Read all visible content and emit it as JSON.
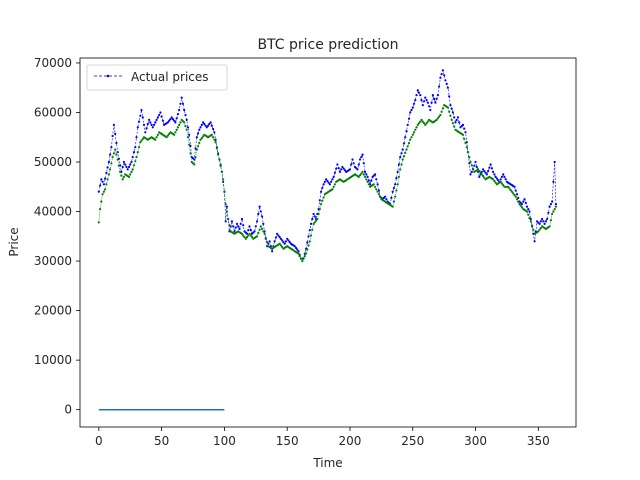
{
  "chart_data": {
    "type": "line",
    "title": "BTC price prediction",
    "xlabel": "Time",
    "ylabel": "Price",
    "xlim": [
      -15,
      380
    ],
    "ylim": [
      -3500,
      71000
    ],
    "xticks": [
      0,
      50,
      100,
      150,
      200,
      250,
      300,
      350
    ],
    "yticks": [
      0,
      10000,
      20000,
      30000,
      40000,
      50000,
      60000,
      70000
    ],
    "grid": false,
    "legend": {
      "position": "top-left",
      "entries": [
        "Actual prices"
      ]
    },
    "series": [
      {
        "name": "Actual prices",
        "color": "#0000ff",
        "style": "dashed-dots",
        "keypoints": [
          [
            0,
            44000
          ],
          [
            2,
            46500
          ],
          [
            4,
            45500
          ],
          [
            6,
            47800
          ],
          [
            8,
            50000
          ],
          [
            10,
            53000
          ],
          [
            12,
            57500
          ],
          [
            15,
            52000
          ],
          [
            18,
            48000
          ],
          [
            20,
            50000
          ],
          [
            23,
            48500
          ],
          [
            26,
            50000
          ],
          [
            29,
            53000
          ],
          [
            31,
            57000
          ],
          [
            34,
            60500
          ],
          [
            37,
            56000
          ],
          [
            40,
            58500
          ],
          [
            43,
            57000
          ],
          [
            46,
            58500
          ],
          [
            49,
            60000
          ],
          [
            52,
            57500
          ],
          [
            55,
            58000
          ],
          [
            58,
            59000
          ],
          [
            61,
            58000
          ],
          [
            64,
            60500
          ],
          [
            66,
            63000
          ],
          [
            68,
            60500
          ],
          [
            70,
            58500
          ],
          [
            72,
            55500
          ],
          [
            74,
            51000
          ],
          [
            76,
            50500
          ],
          [
            78,
            55000
          ],
          [
            80,
            56500
          ],
          [
            83,
            58000
          ],
          [
            86,
            57000
          ],
          [
            89,
            58000
          ],
          [
            92,
            56000
          ],
          [
            94,
            53000
          ],
          [
            96,
            50500
          ],
          [
            98,
            48000
          ],
          [
            100,
            44000
          ],
          [
            101,
            38000
          ],
          [
            102,
            41000
          ],
          [
            104,
            36000
          ],
          [
            106,
            38000
          ],
          [
            108,
            36000
          ],
          [
            110,
            37500
          ],
          [
            112,
            36500
          ],
          [
            114,
            38500
          ],
          [
            116,
            36000
          ],
          [
            118,
            35500
          ],
          [
            120,
            37000
          ],
          [
            122,
            35500
          ],
          [
            124,
            36000
          ],
          [
            126,
            38000
          ],
          [
            128,
            41000
          ],
          [
            130,
            39000
          ],
          [
            132,
            36000
          ],
          [
            134,
            33000
          ],
          [
            136,
            34000
          ],
          [
            138,
            32000
          ],
          [
            140,
            34000
          ],
          [
            142,
            35500
          ],
          [
            145,
            34500
          ],
          [
            148,
            33500
          ],
          [
            150,
            34500
          ],
          [
            153,
            33500
          ],
          [
            156,
            33000
          ],
          [
            159,
            32000
          ],
          [
            161,
            30500
          ],
          [
            163,
            30500
          ],
          [
            165,
            32500
          ],
          [
            167,
            35000
          ],
          [
            169,
            37500
          ],
          [
            171,
            39500
          ],
          [
            173,
            38500
          ],
          [
            175,
            40500
          ],
          [
            177,
            44000
          ],
          [
            179,
            45500
          ],
          [
            181,
            46500
          ],
          [
            184,
            45500
          ],
          [
            187,
            47000
          ],
          [
            190,
            49500
          ],
          [
            192,
            48000
          ],
          [
            194,
            49000
          ],
          [
            197,
            48000
          ],
          [
            200,
            48500
          ],
          [
            202,
            50500
          ],
          [
            204,
            49000
          ],
          [
            206,
            48500
          ],
          [
            208,
            50500
          ],
          [
            210,
            51500
          ],
          [
            212,
            48000
          ],
          [
            214,
            47000
          ],
          [
            216,
            45500
          ],
          [
            218,
            47000
          ],
          [
            220,
            47500
          ],
          [
            222,
            45500
          ],
          [
            224,
            43000
          ],
          [
            226,
            42500
          ],
          [
            228,
            43000
          ],
          [
            230,
            42000
          ],
          [
            232,
            41500
          ],
          [
            234,
            44000
          ],
          [
            236,
            45500
          ],
          [
            238,
            48000
          ],
          [
            240,
            51000
          ],
          [
            242,
            52500
          ],
          [
            244,
            55000
          ],
          [
            246,
            57500
          ],
          [
            248,
            60000
          ],
          [
            250,
            61000
          ],
          [
            252,
            62500
          ],
          [
            254,
            64500
          ],
          [
            256,
            63500
          ],
          [
            258,
            61500
          ],
          [
            260,
            63000
          ],
          [
            262,
            62000
          ],
          [
            264,
            60500
          ],
          [
            266,
            63500
          ],
          [
            268,
            62000
          ],
          [
            270,
            63500
          ],
          [
            272,
            67000
          ],
          [
            274,
            68500
          ],
          [
            276,
            66500
          ],
          [
            278,
            65000
          ],
          [
            280,
            61500
          ],
          [
            282,
            60000
          ],
          [
            284,
            58000
          ],
          [
            286,
            59000
          ],
          [
            288,
            57000
          ],
          [
            290,
            57500
          ],
          [
            292,
            56000
          ],
          [
            294,
            52000
          ],
          [
            296,
            47500
          ],
          [
            298,
            48500
          ],
          [
            300,
            50000
          ],
          [
            303,
            47000
          ],
          [
            306,
            48500
          ],
          [
            309,
            47500
          ],
          [
            312,
            49500
          ],
          [
            314,
            48000
          ],
          [
            316,
            47000
          ],
          [
            319,
            46000
          ],
          [
            322,
            47500
          ],
          [
            325,
            46000
          ],
          [
            328,
            45500
          ],
          [
            331,
            45000
          ],
          [
            333,
            43500
          ],
          [
            335,
            42000
          ],
          [
            337,
            41500
          ],
          [
            339,
            42500
          ],
          [
            341,
            41000
          ],
          [
            343,
            40000
          ],
          [
            345,
            37000
          ],
          [
            347,
            34000
          ],
          [
            349,
            38000
          ],
          [
            351,
            37500
          ],
          [
            353,
            38500
          ],
          [
            355,
            37500
          ],
          [
            357,
            38500
          ],
          [
            359,
            41000
          ],
          [
            361,
            42000
          ],
          [
            363,
            50000
          ],
          [
            364,
            41500
          ]
        ]
      },
      {
        "name": "",
        "color": "#008000",
        "style": "dotted-dots",
        "keypoints": [
          [
            0,
            37800
          ],
          [
            1,
            40500
          ],
          [
            3,
            43500
          ],
          [
            5,
            44500
          ],
          [
            7,
            46500
          ],
          [
            9,
            48500
          ],
          [
            11,
            51000
          ],
          [
            13,
            52500
          ],
          [
            15,
            50500
          ],
          [
            17,
            48000
          ],
          [
            19,
            46500
          ],
          [
            21,
            47500
          ],
          [
            24,
            47000
          ],
          [
            27,
            48500
          ],
          [
            30,
            51000
          ],
          [
            33,
            54000
          ],
          [
            36,
            55000
          ],
          [
            39,
            54500
          ],
          [
            42,
            55000
          ],
          [
            45,
            54500
          ],
          [
            48,
            56000
          ],
          [
            51,
            55500
          ],
          [
            54,
            55000
          ],
          [
            57,
            56000
          ],
          [
            60,
            55500
          ],
          [
            63,
            57000
          ],
          [
            66,
            58500
          ],
          [
            68,
            58000
          ],
          [
            70,
            56500
          ],
          [
            72,
            53500
          ],
          [
            74,
            50000
          ],
          [
            76,
            49500
          ],
          [
            78,
            52500
          ],
          [
            81,
            54500
          ],
          [
            84,
            55500
          ],
          [
            87,
            55000
          ],
          [
            90,
            55500
          ],
          [
            93,
            54000
          ],
          [
            95,
            51500
          ],
          [
            97,
            49500
          ],
          [
            99,
            46500
          ],
          [
            101,
            41500
          ],
          [
            103,
            38500
          ],
          [
            105,
            36000
          ],
          [
            108,
            35500
          ],
          [
            111,
            36000
          ],
          [
            114,
            35500
          ],
          [
            117,
            34500
          ],
          [
            120,
            35500
          ],
          [
            123,
            34500
          ],
          [
            126,
            35000
          ],
          [
            129,
            37000
          ],
          [
            132,
            35500
          ],
          [
            135,
            33000
          ],
          [
            138,
            32500
          ],
          [
            141,
            33000
          ],
          [
            144,
            33500
          ],
          [
            147,
            32500
          ],
          [
            150,
            33000
          ],
          [
            153,
            32500
          ],
          [
            156,
            32000
          ],
          [
            159,
            31500
          ],
          [
            162,
            30000
          ],
          [
            165,
            31500
          ],
          [
            168,
            34000
          ],
          [
            171,
            37500
          ],
          [
            174,
            38500
          ],
          [
            177,
            41500
          ],
          [
            180,
            43500
          ],
          [
            183,
            44000
          ],
          [
            186,
            44500
          ],
          [
            189,
            46000
          ],
          [
            192,
            46500
          ],
          [
            195,
            46000
          ],
          [
            198,
            46500
          ],
          [
            201,
            47000
          ],
          [
            204,
            47500
          ],
          [
            207,
            47000
          ],
          [
            210,
            48000
          ],
          [
            213,
            46500
          ],
          [
            216,
            45000
          ],
          [
            219,
            45500
          ],
          [
            222,
            44000
          ],
          [
            225,
            42500
          ],
          [
            228,
            42000
          ],
          [
            231,
            41500
          ],
          [
            234,
            41000
          ],
          [
            236,
            43000
          ],
          [
            238,
            45500
          ],
          [
            240,
            48500
          ],
          [
            242,
            50500
          ],
          [
            245,
            52500
          ],
          [
            248,
            54500
          ],
          [
            251,
            56000
          ],
          [
            254,
            57500
          ],
          [
            257,
            58500
          ],
          [
            260,
            57500
          ],
          [
            263,
            58500
          ],
          [
            266,
            58000
          ],
          [
            269,
            58500
          ],
          [
            272,
            59500
          ],
          [
            275,
            61500
          ],
          [
            278,
            61000
          ],
          [
            281,
            58500
          ],
          [
            284,
            56500
          ],
          [
            287,
            56000
          ],
          [
            290,
            55500
          ],
          [
            293,
            53000
          ],
          [
            296,
            50000
          ],
          [
            299,
            48000
          ],
          [
            302,
            48500
          ],
          [
            305,
            47500
          ],
          [
            308,
            46500
          ],
          [
            311,
            47000
          ],
          [
            314,
            46500
          ],
          [
            317,
            45500
          ],
          [
            320,
            46000
          ],
          [
            323,
            45000
          ],
          [
            326,
            45000
          ],
          [
            329,
            44000
          ],
          [
            332,
            43000
          ],
          [
            335,
            41500
          ],
          [
            338,
            40500
          ],
          [
            341,
            40000
          ],
          [
            344,
            38000
          ],
          [
            347,
            35500
          ],
          [
            350,
            36000
          ],
          [
            353,
            37000
          ],
          [
            356,
            36500
          ],
          [
            359,
            37000
          ],
          [
            361,
            39500
          ],
          [
            364,
            41000
          ]
        ]
      },
      {
        "name": "",
        "color": "#1f77b4",
        "style": "solid",
        "keypoints": [
          [
            0,
            0
          ],
          [
            100,
            0
          ]
        ]
      }
    ]
  }
}
